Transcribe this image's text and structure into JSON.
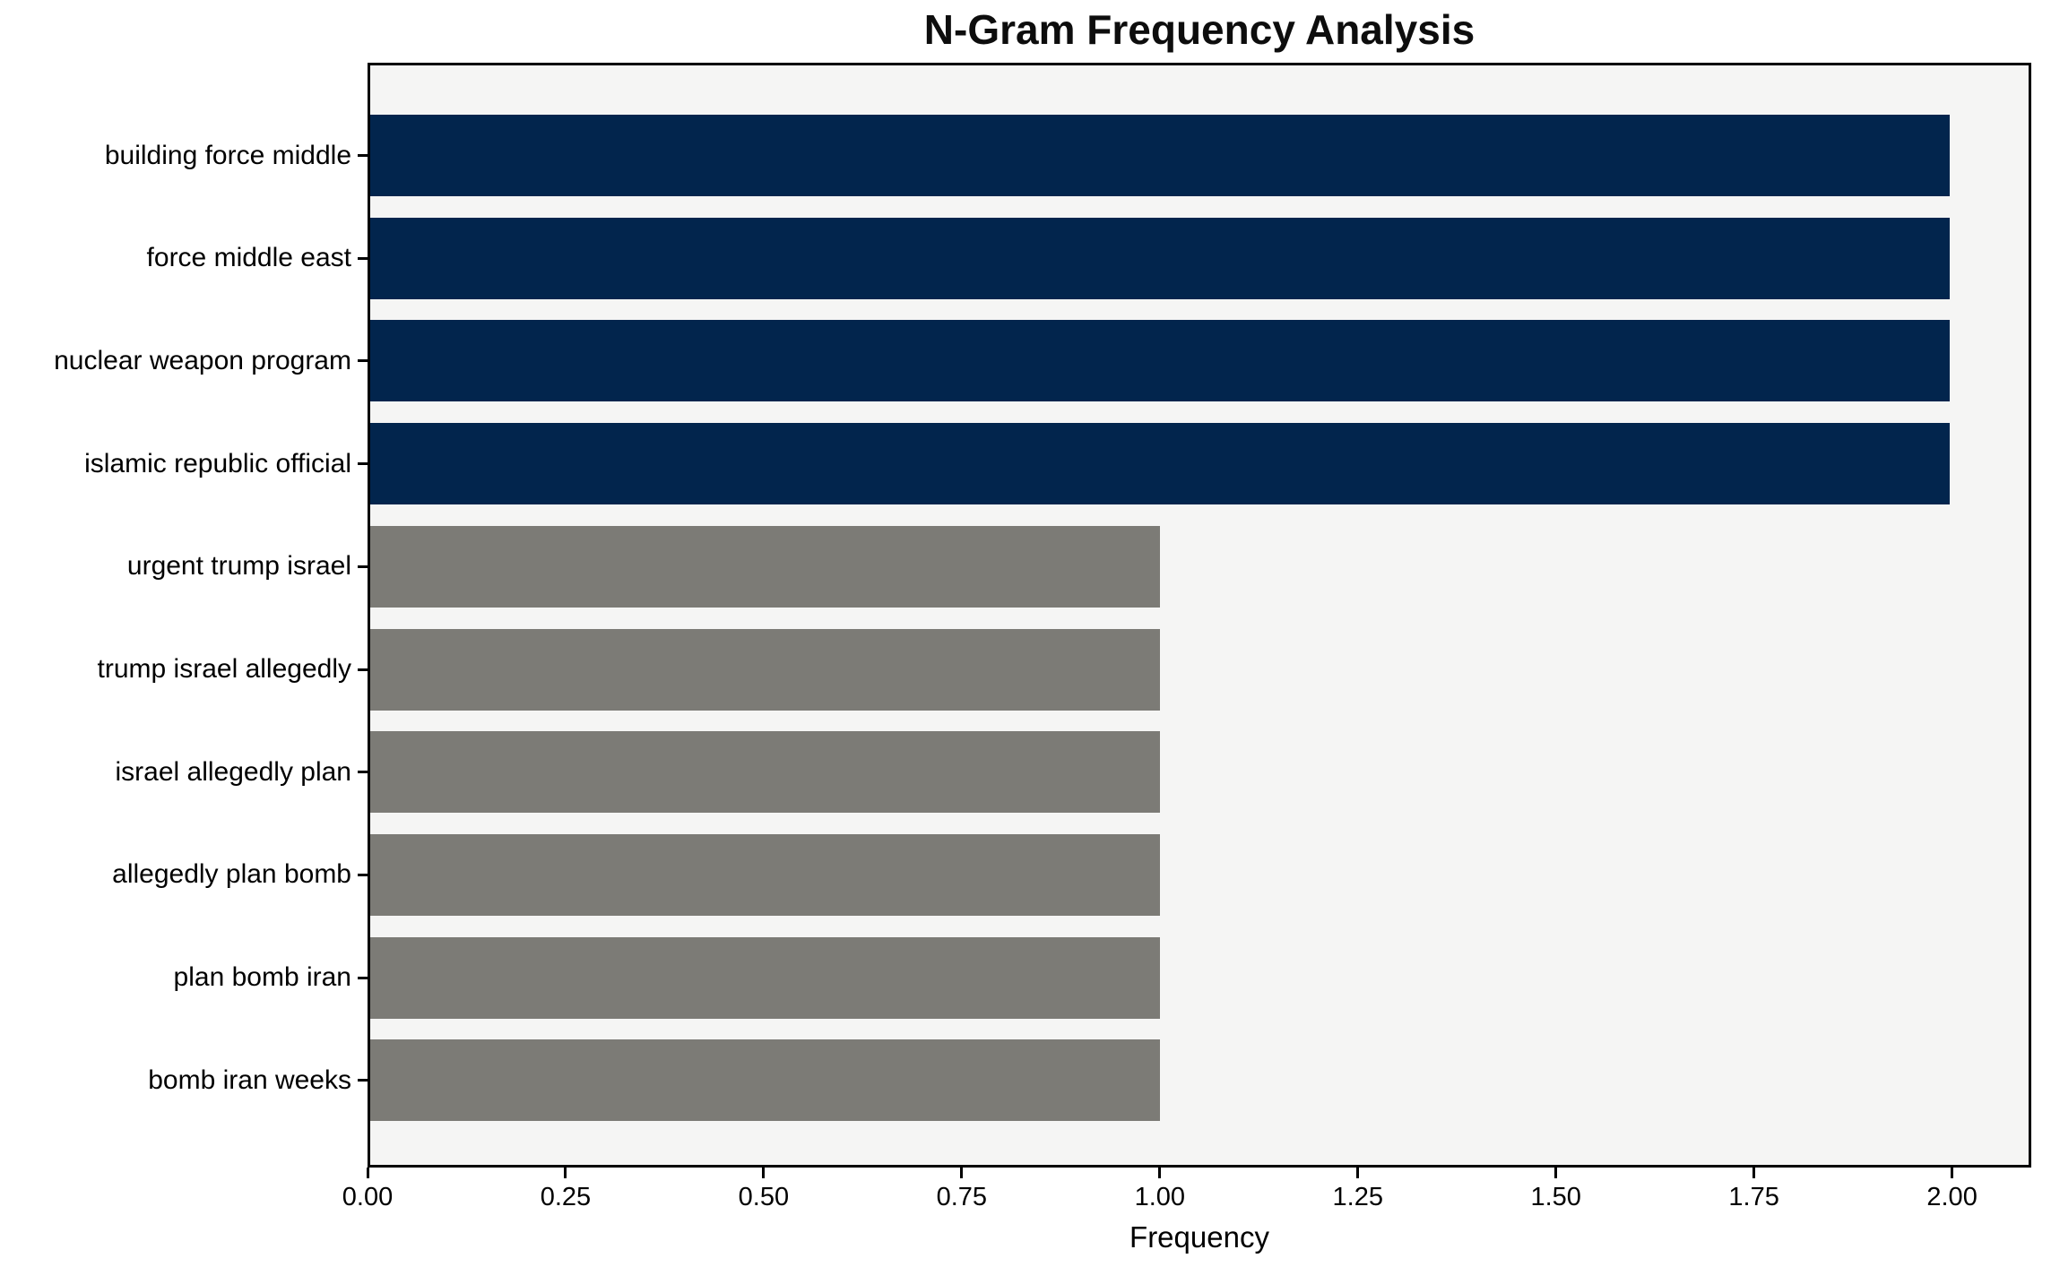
{
  "chart_data": {
    "type": "bar",
    "orientation": "horizontal",
    "title": "N-Gram Frequency Analysis",
    "xlabel": "Frequency",
    "ylabel": "",
    "categories": [
      "building force middle",
      "force middle east",
      "nuclear weapon program",
      "islamic republic official",
      "urgent trump israel",
      "trump israel allegedly",
      "israel allegedly plan",
      "allegedly plan bomb",
      "plan bomb iran",
      "bomb iran weeks"
    ],
    "values": [
      2,
      2,
      2,
      2,
      1,
      1,
      1,
      1,
      1,
      1
    ],
    "bar_colors": [
      "#02254d",
      "#02254d",
      "#02254d",
      "#02254d",
      "#7c7b76",
      "#7c7b76",
      "#7c7b76",
      "#7c7b76",
      "#7c7b76",
      "#7c7b76"
    ],
    "xlim": [
      0,
      2.1
    ],
    "xticks": [
      0,
      0.25,
      0.5,
      0.75,
      1.0,
      1.25,
      1.5,
      1.75,
      2.0
    ],
    "xtick_labels": [
      "0.00",
      "0.25",
      "0.50",
      "0.75",
      "1.00",
      "1.25",
      "1.50",
      "1.75",
      "2.00"
    ],
    "grid": false,
    "legend": null,
    "colors": {
      "high_frequency_bar": "#02254d",
      "low_frequency_bar": "#7c7b76",
      "plot_background": "#f5f5f4",
      "figure_background": "#ffffff",
      "spine": "#000000"
    }
  }
}
